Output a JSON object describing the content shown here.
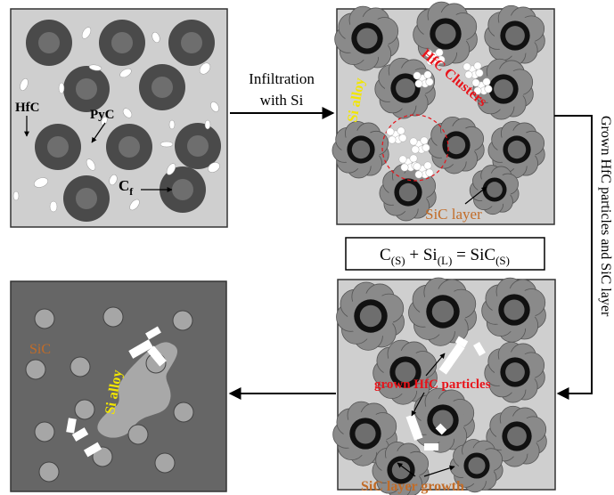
{
  "panel1": {
    "labels": {
      "hfc": "HfC",
      "pyc": "PyC",
      "cf_main": "C",
      "cf_sub": "f"
    }
  },
  "step1": {
    "line1": "Infiltration",
    "line2": "with Si"
  },
  "panel2": {
    "labels": {
      "si_alloy": "Si alloy",
      "hfc_clusters": "HfC Clusters",
      "sic_layer": "SiC layer"
    }
  },
  "side_arrow_label": "Grown HfC particles and SiC layer",
  "equation": {
    "c": "C",
    "c_sub": "(S)",
    "plus": " + ",
    "si": "Si",
    "si_sub": "(L)",
    "eq": " = ",
    "sic": "SiC",
    "sic_sub": "(S)"
  },
  "panel3": {
    "labels": {
      "grown_hfc": "grown HfC particles",
      "sic_growth": "SiC layer growth"
    }
  },
  "panel4": {
    "labels": {
      "sic": "SiC",
      "si_alloy": "Si alloy"
    }
  },
  "colors": {
    "panel_bg": "#cfcfcf",
    "panel4_bg": "#666666",
    "fiber_ring": "#4a4a4a",
    "fiber_core": "#6e6e6e",
    "fiber_dark": "#111111",
    "cloud": "#8a8a8a",
    "red_label": "#e8141b",
    "yellow_label": "#f2e600",
    "orange_label": "#c26c28",
    "particle": "#ffffff"
  }
}
